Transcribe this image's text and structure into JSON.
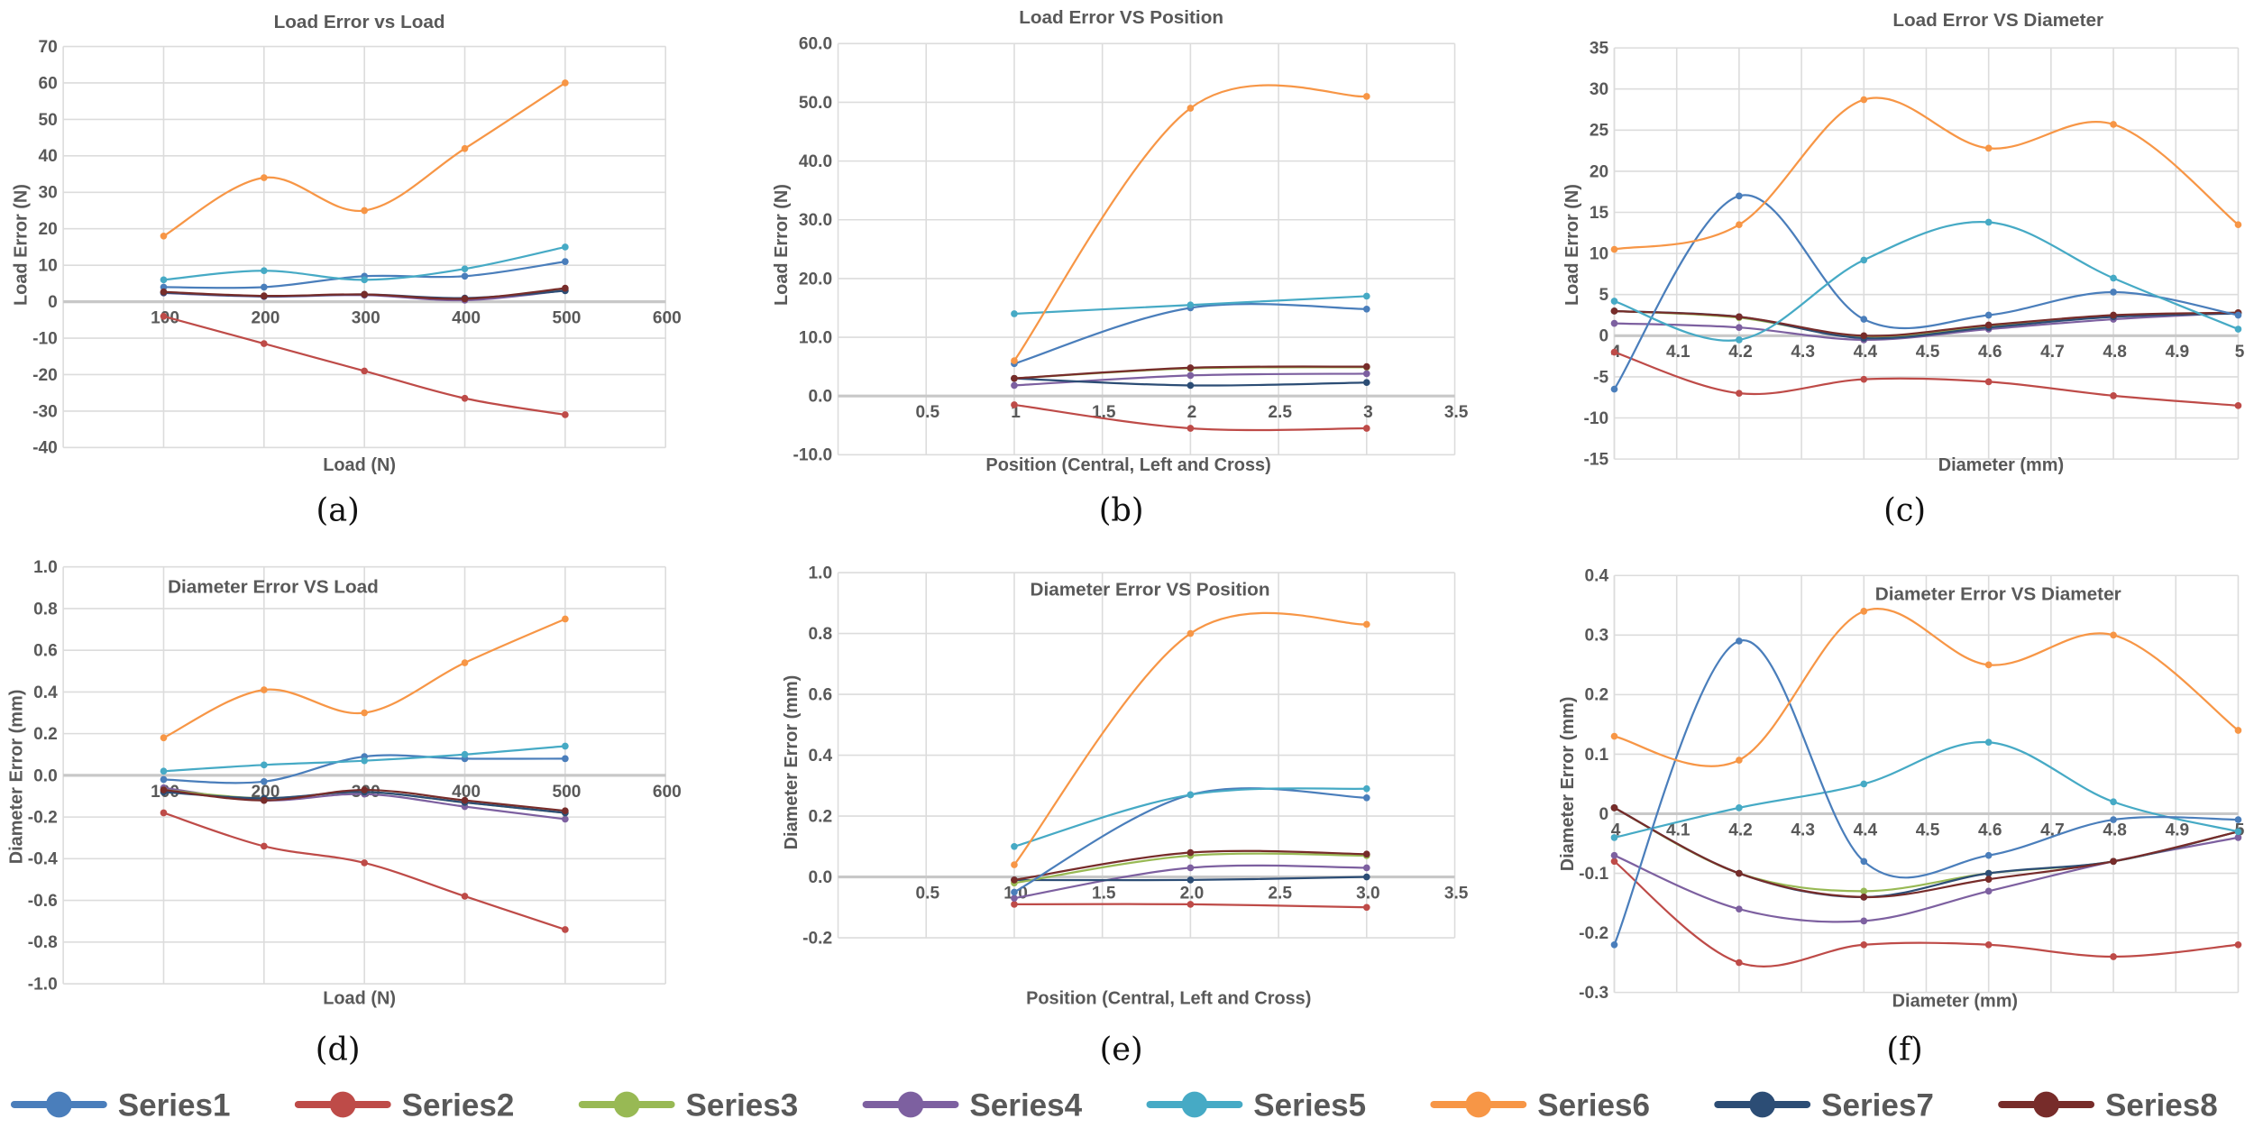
{
  "series_colors": {
    "Series1": "#4a7ebb",
    "Series2": "#be4b48",
    "Series3": "#98b954",
    "Series4": "#7d60a0",
    "Series5": "#46aac5",
    "Series6": "#f79646",
    "Series7": "#2c4d75",
    "Series8": "#772c2a"
  },
  "legend": [
    "Series1",
    "Series2",
    "Series3",
    "Series4",
    "Series5",
    "Series6",
    "Series7",
    "Series8"
  ],
  "chart_data": [
    {
      "id": "a",
      "panel": "(a)",
      "type": "line",
      "title": "Load Error vs Load",
      "xlabel": "Load (N)",
      "ylabel": "Load Error (N)",
      "xlim": [
        0,
        600
      ],
      "ylim": [
        -40,
        70
      ],
      "xticks": [
        {
          "v": 100,
          "t": "100"
        },
        {
          "v": 200,
          "t": "200"
        },
        {
          "v": 300,
          "t": "300"
        },
        {
          "v": 400,
          "t": "400"
        },
        {
          "v": 500,
          "t": "500"
        },
        {
          "v": 600,
          "t": "600"
        }
      ],
      "yticks": [
        {
          "v": 70,
          "t": "70"
        },
        {
          "v": 60,
          "t": "60"
        },
        {
          "v": 50,
          "t": "50"
        },
        {
          "v": 40,
          "t": "40"
        },
        {
          "v": 30,
          "t": "30"
        },
        {
          "v": 20,
          "t": "20"
        },
        {
          "v": 10,
          "t": "10"
        },
        {
          "v": 0,
          "t": "0"
        },
        {
          "v": -10,
          "t": "-10"
        },
        {
          "v": -20,
          "t": "-20"
        },
        {
          "v": -30,
          "t": "-30"
        },
        {
          "v": -40,
          "t": "-40"
        }
      ],
      "x": [
        100,
        200,
        300,
        400,
        500
      ],
      "series": [
        {
          "name": "Series2",
          "values": [
            -4,
            -11.5,
            -19,
            -26.5,
            -31
          ]
        },
        {
          "name": "Series1",
          "values": [
            4,
            4,
            7,
            7,
            11
          ]
        },
        {
          "name": "Series5",
          "values": [
            6,
            8.5,
            6,
            9,
            15
          ]
        },
        {
          "name": "Series6",
          "values": [
            18,
            34,
            25,
            42,
            60
          ]
        },
        {
          "name": "Series3",
          "values": [
            2.6,
            1.5,
            1.9,
            0.6,
            3.3
          ]
        },
        {
          "name": "Series4",
          "values": [
            2.4,
            1.4,
            1.8,
            0.4,
            3.1
          ]
        },
        {
          "name": "Series7",
          "values": [
            2.5,
            1.5,
            2,
            1,
            3
          ]
        },
        {
          "name": "Series8",
          "values": [
            2.7,
            1.6,
            2,
            0.8,
            3.7
          ]
        }
      ]
    },
    {
      "id": "b",
      "panel": "(b)",
      "type": "line",
      "title": "Load Error VS Position",
      "xlabel": "Position (Central, Left and Cross)",
      "ylabel": "Load Error (N)",
      "xlim": [
        0,
        3.5
      ],
      "ylim": [
        -10,
        60
      ],
      "xticks": [
        {
          "v": 0.5,
          "t": "0.5"
        },
        {
          "v": 1,
          "t": "1"
        },
        {
          "v": 1.5,
          "t": "1.5"
        },
        {
          "v": 2,
          "t": "2"
        },
        {
          "v": 2.5,
          "t": "2.5"
        },
        {
          "v": 3,
          "t": "3"
        },
        {
          "v": 3.5,
          "t": "3.5"
        }
      ],
      "yticks": [
        {
          "v": 60,
          "t": "60.0"
        },
        {
          "v": 50,
          "t": "50.0"
        },
        {
          "v": 40,
          "t": "40.0"
        },
        {
          "v": 30,
          "t": "30.0"
        },
        {
          "v": 20,
          "t": "20.0"
        },
        {
          "v": 10,
          "t": "10.0"
        },
        {
          "v": 0,
          "t": "0.0"
        },
        {
          "v": -10,
          "t": "-10.0"
        }
      ],
      "x": [
        1,
        2,
        3
      ],
      "series": [
        {
          "name": "Series2",
          "values": [
            -1.5,
            -5.5,
            -5.5
          ]
        },
        {
          "name": "Series3",
          "values": [
            3,
            4.7,
            4.9
          ]
        },
        {
          "name": "Series4",
          "values": [
            1.8,
            3.5,
            3.8
          ]
        },
        {
          "name": "Series7",
          "values": [
            3,
            1.8,
            2.3
          ]
        },
        {
          "name": "Series8",
          "values": [
            3,
            4.8,
            5
          ]
        },
        {
          "name": "Series1",
          "values": [
            5.5,
            15,
            14.8
          ]
        },
        {
          "name": "Series5",
          "values": [
            14,
            15.5,
            17
          ]
        },
        {
          "name": "Series6",
          "values": [
            6,
            49,
            51
          ]
        }
      ]
    },
    {
      "id": "c",
      "panel": "(c)",
      "type": "line",
      "title": "Load Error VS Diameter",
      "xlabel": "Diameter (mm)",
      "ylabel": "Load Error (N)",
      "xlim": [
        4,
        5
      ],
      "ylim": [
        -15,
        35
      ],
      "xticks": [
        {
          "v": 4,
          "t": "4"
        },
        {
          "v": 4.1,
          "t": "4.1"
        },
        {
          "v": 4.2,
          "t": "4.2"
        },
        {
          "v": 4.3,
          "t": "4.3"
        },
        {
          "v": 4.4,
          "t": "4.4"
        },
        {
          "v": 4.5,
          "t": "4.5"
        },
        {
          "v": 4.6,
          "t": "4.6"
        },
        {
          "v": 4.7,
          "t": "4.7"
        },
        {
          "v": 4.8,
          "t": "4.8"
        },
        {
          "v": 4.9,
          "t": "4.9"
        },
        {
          "v": 5,
          "t": "5"
        }
      ],
      "yticks": [
        {
          "v": 35,
          "t": "35"
        },
        {
          "v": 30,
          "t": "30"
        },
        {
          "v": 25,
          "t": "25"
        },
        {
          "v": 20,
          "t": "20"
        },
        {
          "v": 15,
          "t": "15"
        },
        {
          "v": 10,
          "t": "10"
        },
        {
          "v": 5,
          "t": "5"
        },
        {
          "v": 0,
          "t": "0"
        },
        {
          "v": -5,
          "t": "-5"
        },
        {
          "v": -10,
          "t": "-10"
        },
        {
          "v": -15,
          "t": "-15"
        }
      ],
      "x": [
        4.0,
        4.2,
        4.4,
        4.6,
        4.8,
        5.0
      ],
      "series": [
        {
          "name": "Series2",
          "values": [
            -2,
            -7,
            -5.3,
            -5.6,
            -7.3,
            -8.5
          ]
        },
        {
          "name": "Series4",
          "values": [
            1.5,
            1,
            -0.5,
            0.8,
            2,
            2.8
          ]
        },
        {
          "name": "Series3",
          "values": [
            3,
            2.2,
            -0.2,
            1.1,
            2.4,
            2.8
          ]
        },
        {
          "name": "Series7",
          "values": [
            3,
            2.3,
            -0.3,
            1,
            2.3,
            2.7
          ]
        },
        {
          "name": "Series8",
          "values": [
            3,
            2.3,
            0,
            1.3,
            2.5,
            2.8
          ]
        },
        {
          "name": "Series1",
          "values": [
            -6.5,
            17,
            2,
            2.5,
            5.3,
            2.5
          ]
        },
        {
          "name": "Series5",
          "values": [
            4.2,
            -0.5,
            9.2,
            13.8,
            7,
            0.8
          ]
        },
        {
          "name": "Series6",
          "values": [
            10.5,
            13.5,
            28.7,
            22.8,
            25.7,
            13.5
          ]
        }
      ]
    },
    {
      "id": "d",
      "panel": "(d)",
      "type": "line",
      "title": "Diameter Error VS Load",
      "xlabel": "Load (N)",
      "ylabel": "Diameter Error (mm)",
      "xlim": [
        0,
        600
      ],
      "ylim": [
        -1.0,
        1.0
      ],
      "xticks": [
        {
          "v": 100,
          "t": "100"
        },
        {
          "v": 200,
          "t": "200"
        },
        {
          "v": 300,
          "t": "300"
        },
        {
          "v": 400,
          "t": "400"
        },
        {
          "v": 500,
          "t": "500"
        },
        {
          "v": 600,
          "t": "600"
        }
      ],
      "yticks": [
        {
          "v": 1.0,
          "t": "1.0"
        },
        {
          "v": 0.8,
          "t": "0.8"
        },
        {
          "v": 0.6,
          "t": "0.6"
        },
        {
          "v": 0.4,
          "t": "0.4"
        },
        {
          "v": 0.2,
          "t": "0.2"
        },
        {
          "v": 0,
          "t": "0.0"
        },
        {
          "v": -0.2,
          "t": "-0.2"
        },
        {
          "v": -0.4,
          "t": "-0.4"
        },
        {
          "v": -0.6,
          "t": "-0.6"
        },
        {
          "v": -0.8,
          "t": "-0.8"
        },
        {
          "v": -1.0,
          "t": "-1.0"
        }
      ],
      "x": [
        100,
        200,
        300,
        400,
        500
      ],
      "series": [
        {
          "name": "Series2",
          "values": [
            -0.18,
            -0.34,
            -0.42,
            -0.58,
            -0.74
          ]
        },
        {
          "name": "Series1",
          "values": [
            -0.02,
            -0.03,
            0.09,
            0.08,
            0.08
          ]
        },
        {
          "name": "Series5",
          "values": [
            0.02,
            0.05,
            0.07,
            0.1,
            0.14
          ]
        },
        {
          "name": "Series6",
          "values": [
            0.18,
            0.41,
            0.3,
            0.54,
            0.75
          ]
        },
        {
          "name": "Series4",
          "values": [
            -0.06,
            -0.12,
            -0.09,
            -0.15,
            -0.21
          ]
        },
        {
          "name": "Series3",
          "values": [
            -0.07,
            -0.11,
            -0.08,
            -0.13,
            -0.18
          ]
        },
        {
          "name": "Series7",
          "values": [
            -0.08,
            -0.11,
            -0.08,
            -0.13,
            -0.18
          ]
        },
        {
          "name": "Series8",
          "values": [
            -0.07,
            -0.12,
            -0.07,
            -0.12,
            -0.17
          ]
        }
      ]
    },
    {
      "id": "e",
      "panel": "(e)",
      "type": "line",
      "title": "Diameter Error VS Position",
      "xlabel": "Position (Central, Left and Cross)",
      "ylabel": "Diameter Error (mm)",
      "xlim": [
        0,
        3.5
      ],
      "ylim": [
        -0.2,
        1.0
      ],
      "xticks": [
        {
          "v": 0.5,
          "t": "0.5"
        },
        {
          "v": 1,
          "t": "1.0"
        },
        {
          "v": 1.5,
          "t": "1.5"
        },
        {
          "v": 2,
          "t": "2.0"
        },
        {
          "v": 2.5,
          "t": "2.5"
        },
        {
          "v": 3,
          "t": "3.0"
        },
        {
          "v": 3.5,
          "t": "3.5"
        }
      ],
      "yticks": [
        {
          "v": 1.0,
          "t": "1.0"
        },
        {
          "v": 0.8,
          "t": "0.8"
        },
        {
          "v": 0.6,
          "t": "0.6"
        },
        {
          "v": 0.4,
          "t": "0.4"
        },
        {
          "v": 0.2,
          "t": "0.2"
        },
        {
          "v": 0,
          "t": "0.0"
        },
        {
          "v": -0.2,
          "t": "-0.2"
        }
      ],
      "x": [
        1,
        2,
        3
      ],
      "series": [
        {
          "name": "Series2",
          "values": [
            -0.09,
            -0.09,
            -0.1
          ]
        },
        {
          "name": "Series4",
          "values": [
            -0.07,
            0.03,
            0.03
          ]
        },
        {
          "name": "Series7",
          "values": [
            -0.01,
            -0.01,
            0.0
          ]
        },
        {
          "name": "Series3",
          "values": [
            -0.02,
            0.07,
            0.07
          ]
        },
        {
          "name": "Series8",
          "values": [
            -0.01,
            0.08,
            0.075
          ]
        },
        {
          "name": "Series1",
          "values": [
            -0.05,
            0.27,
            0.26
          ]
        },
        {
          "name": "Series5",
          "values": [
            0.1,
            0.27,
            0.29
          ]
        },
        {
          "name": "Series6",
          "values": [
            0.04,
            0.8,
            0.83
          ]
        }
      ]
    },
    {
      "id": "f",
      "panel": "(f)",
      "type": "line",
      "title": "Diameter Error VS Diameter",
      "xlabel": "Diameter (mm)",
      "ylabel": "Diameter Error (mm)",
      "xlim": [
        4,
        5
      ],
      "ylim": [
        -0.3,
        0.4
      ],
      "xticks": [
        {
          "v": 4,
          "t": "4"
        },
        {
          "v": 4.1,
          "t": "4.1"
        },
        {
          "v": 4.2,
          "t": "4.2"
        },
        {
          "v": 4.3,
          "t": "4.3"
        },
        {
          "v": 4.4,
          "t": "4.4"
        },
        {
          "v": 4.5,
          "t": "4.5"
        },
        {
          "v": 4.6,
          "t": "4.6"
        },
        {
          "v": 4.7,
          "t": "4.7"
        },
        {
          "v": 4.8,
          "t": "4.8"
        },
        {
          "v": 4.9,
          "t": "4.9"
        },
        {
          "v": 5,
          "t": "5"
        }
      ],
      "yticks": [
        {
          "v": 0.4,
          "t": "0.4"
        },
        {
          "v": 0.3,
          "t": "0.3"
        },
        {
          "v": 0.2,
          "t": "0.2"
        },
        {
          "v": 0.1,
          "t": "0.1"
        },
        {
          "v": 0,
          "t": "0"
        },
        {
          "v": -0.1,
          "t": "-0.1"
        },
        {
          "v": -0.2,
          "t": "-0.2"
        },
        {
          "v": -0.3,
          "t": "-0.3"
        }
      ],
      "x": [
        4.0,
        4.2,
        4.4,
        4.6,
        4.8,
        5.0
      ],
      "series": [
        {
          "name": "Series2",
          "values": [
            -0.08,
            -0.25,
            -0.22,
            -0.22,
            -0.24,
            -0.22
          ]
        },
        {
          "name": "Series4",
          "values": [
            -0.07,
            -0.16,
            -0.18,
            -0.13,
            -0.08,
            -0.04
          ]
        },
        {
          "name": "Series3",
          "values": [
            0.01,
            -0.1,
            -0.13,
            -0.1,
            -0.08,
            -0.03
          ]
        },
        {
          "name": "Series7",
          "values": [
            0.01,
            -0.1,
            -0.14,
            -0.1,
            -0.08,
            -0.03
          ]
        },
        {
          "name": "Series8",
          "values": [
            0.01,
            -0.1,
            -0.14,
            -0.11,
            -0.08,
            -0.03
          ]
        },
        {
          "name": "Series5",
          "values": [
            -0.04,
            0.01,
            0.05,
            0.12,
            0.02,
            -0.03
          ]
        },
        {
          "name": "Series1",
          "values": [
            -0.22,
            0.29,
            -0.08,
            -0.07,
            -0.01,
            -0.01
          ]
        },
        {
          "name": "Series6",
          "values": [
            0.13,
            0.09,
            0.34,
            0.25,
            0.3,
            0.14
          ]
        }
      ]
    }
  ]
}
